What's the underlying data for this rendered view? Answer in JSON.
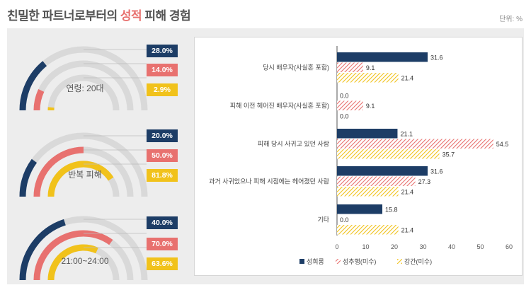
{
  "header": {
    "title_part1": "친밀한 파트너로부터의 ",
    "title_highlight": "성적",
    "title_part2": " 피해 경험",
    "unit": "단위: %"
  },
  "colors": {
    "blue": "#1d3d66",
    "red": "#e8716f",
    "yellow": "#f1c21b",
    "track": "#d9d9d9",
    "panel": "#ededed"
  },
  "gauges": [
    {
      "label": "연령: 20대",
      "values": [
        "28.0%",
        "14.0%",
        "2.9%"
      ],
      "fractions": [
        0.28,
        0.14,
        0.029
      ]
    },
    {
      "label": "반복 피해",
      "values": [
        "20.0%",
        "50.0%",
        "81.8%"
      ],
      "fractions": [
        0.2,
        0.5,
        0.818
      ]
    },
    {
      "label": "21:00~24:00",
      "values": [
        "40.0%",
        "70.0%",
        "63.6%"
      ],
      "fractions": [
        0.4,
        0.7,
        0.636
      ]
    }
  ],
  "chart_data": {
    "type": "bar",
    "orientation": "horizontal",
    "categories": [
      "당시 배우자(사실혼 포함)",
      "피해 이전 헤어진 배우자(사실혼 포함)",
      "피해 당시 사귀고 있던 사람",
      "과거 사귀었으나 피해 시점에는 헤어졌던 사람",
      "기타"
    ],
    "series": [
      {
        "name": "성희롱",
        "values": [
          31.6,
          0.0,
          21.1,
          31.6,
          15.8
        ],
        "labels": [
          "31.6",
          "0.0",
          "21.1",
          "31.6",
          "15.8"
        ],
        "color": "#1d3d66",
        "pattern": "solid"
      },
      {
        "name": "성추행(미수)",
        "values": [
          9.1,
          9.1,
          54.5,
          27.3,
          0.0
        ],
        "labels": [
          "9.1",
          "9.1",
          "54.5",
          "27.3",
          "0.0"
        ],
        "color": "#e8716f",
        "pattern": "hatch"
      },
      {
        "name": "강간(미수)",
        "values": [
          21.4,
          0.0,
          35.7,
          21.4,
          21.4
        ],
        "labels": [
          "21.4",
          "0.0",
          "35.7",
          "21.4",
          "21.4"
        ],
        "color": "#f1c21b",
        "pattern": "hatch"
      }
    ],
    "xlim": [
      0,
      60
    ],
    "xticks": [
      "0",
      "10",
      "20",
      "30",
      "40",
      "50",
      "60"
    ],
    "legend": "bottom-center",
    "grid": false
  }
}
